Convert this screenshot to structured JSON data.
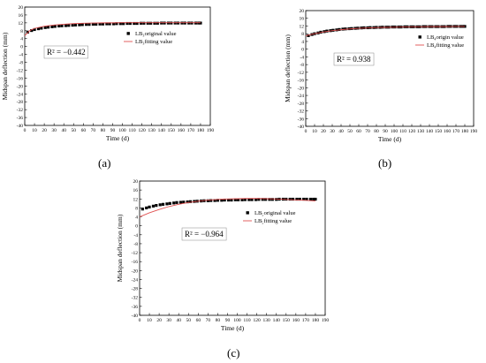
{
  "chart_data": [
    {
      "type": "scatter",
      "xlabel": "Time (d)",
      "ylabel": "Midspan deflection (mm)",
      "xlim": [
        0,
        190
      ],
      "ylim": [
        -40,
        20
      ],
      "xticks": [
        0,
        10,
        20,
        30,
        40,
        50,
        60,
        70,
        80,
        90,
        100,
        110,
        120,
        130,
        140,
        150,
        160,
        170,
        180,
        190
      ],
      "yticks": [
        20,
        16,
        12,
        8,
        4,
        0,
        -4,
        -8,
        -12,
        -16,
        -20,
        -24,
        -28,
        -32,
        -36,
        -40
      ],
      "series": [
        {
          "name": "LB₃original value",
          "style": "points",
          "color": "#000000",
          "x": [
            3,
            7,
            10,
            14,
            17,
            21,
            24,
            28,
            31,
            35,
            38,
            42,
            45,
            49,
            52,
            56,
            59,
            63,
            66,
            70,
            73,
            77,
            80,
            84,
            87,
            91,
            94,
            98,
            101,
            105,
            108,
            112,
            115,
            119,
            122,
            126,
            129,
            133,
            136,
            140,
            143,
            147,
            150,
            154,
            157,
            161,
            164,
            168,
            171,
            175,
            178,
            180
          ],
          "y": [
            7.3,
            8.1,
            8.6,
            9.0,
            9.3,
            9.6,
            9.8,
            10.0,
            10.2,
            10.4,
            10.5,
            10.6,
            10.7,
            10.8,
            10.9,
            11.0,
            11.1,
            11.2,
            11.2,
            11.3,
            11.3,
            11.4,
            11.4,
            11.5,
            11.5,
            11.5,
            11.6,
            11.6,
            11.6,
            11.7,
            11.7,
            11.7,
            11.7,
            11.8,
            11.8,
            11.8,
            11.8,
            11.8,
            11.8,
            11.9,
            11.9,
            11.9,
            11.9,
            11.9,
            11.9,
            11.9,
            11.9,
            11.9,
            11.9,
            11.9,
            11.9,
            11.9
          ]
        },
        {
          "name": "LB₃fitting value",
          "style": "line",
          "color": "#e05050",
          "x": [
            0,
            5,
            10,
            20,
            30,
            40,
            50,
            60,
            70,
            80,
            90,
            100,
            110,
            120,
            130,
            140,
            150,
            160,
            170,
            180
          ],
          "y": [
            5.5,
            8.0,
            9.2,
            10.3,
            10.9,
            11.3,
            11.6,
            11.8,
            11.9,
            12.0,
            12.0,
            12.1,
            12.1,
            12.1,
            12.1,
            12.1,
            12.1,
            12.1,
            12.1,
            12.1
          ]
        }
      ],
      "annotation": "R² = −0.442",
      "legend": "top-right",
      "grid": false,
      "caption": "(a)"
    },
    {
      "type": "scatter",
      "xlabel": "Time (d)",
      "ylabel": "Midspan deflection (mm)",
      "xlim": [
        0,
        190
      ],
      "ylim": [
        -40,
        20
      ],
      "xticks": [
        0,
        10,
        20,
        30,
        40,
        50,
        60,
        70,
        80,
        90,
        100,
        110,
        120,
        130,
        140,
        150,
        160,
        170,
        180,
        190
      ],
      "yticks": [
        20,
        16,
        12,
        8,
        4,
        0,
        -4,
        -8,
        -12,
        -16,
        -20,
        -24,
        -28,
        -32,
        -36,
        -40
      ],
      "series": [
        {
          "name": "LB₄origin value",
          "style": "points",
          "color": "#000000",
          "x": [
            3,
            7,
            10,
            14,
            17,
            21,
            24,
            28,
            31,
            35,
            38,
            42,
            45,
            49,
            52,
            56,
            59,
            63,
            66,
            70,
            73,
            77,
            80,
            84,
            87,
            91,
            94,
            98,
            101,
            105,
            108,
            112,
            115,
            119,
            122,
            126,
            129,
            133,
            136,
            140,
            143,
            147,
            150,
            154,
            157,
            161,
            164,
            168,
            171,
            175,
            178,
            180
          ],
          "y": [
            7.0,
            7.6,
            8.0,
            8.4,
            8.8,
            9.1,
            9.4,
            9.6,
            9.8,
            10.0,
            10.2,
            10.4,
            10.5,
            10.6,
            10.7,
            10.8,
            10.9,
            11.0,
            11.1,
            11.1,
            11.2,
            11.2,
            11.3,
            11.3,
            11.4,
            11.4,
            11.4,
            11.5,
            11.5,
            11.5,
            11.5,
            11.6,
            11.6,
            11.6,
            11.6,
            11.6,
            11.6,
            11.7,
            11.7,
            11.7,
            11.7,
            11.7,
            11.7,
            11.7,
            11.7,
            11.8,
            11.8,
            11.8,
            11.8,
            11.8,
            11.8,
            11.8
          ]
        },
        {
          "name": "LB₄fitting value",
          "style": "line",
          "color": "#e05050",
          "x": [
            0,
            5,
            10,
            20,
            30,
            40,
            50,
            60,
            70,
            80,
            90,
            100,
            110,
            120,
            130,
            140,
            150,
            160,
            170,
            180
          ],
          "y": [
            7.0,
            7.5,
            8.0,
            8.9,
            9.6,
            10.1,
            10.5,
            10.8,
            11.0,
            11.2,
            11.3,
            11.4,
            11.5,
            11.6,
            11.6,
            11.7,
            11.7,
            11.7,
            11.8,
            11.8
          ]
        }
      ],
      "annotation": "R² = 0.938",
      "legend": "top-right",
      "grid": false,
      "caption": "(b)"
    },
    {
      "type": "scatter",
      "xlabel": "Time (d)",
      "ylabel": "Midspan deflection (mm)",
      "xlim": [
        0,
        190
      ],
      "ylim": [
        -40,
        20
      ],
      "xticks": [
        0,
        10,
        20,
        30,
        40,
        50,
        60,
        70,
        80,
        90,
        100,
        110,
        120,
        130,
        140,
        150,
        160,
        170,
        180,
        190
      ],
      "yticks": [
        20,
        16,
        12,
        8,
        4,
        0,
        -4,
        -8,
        -12,
        -16,
        -20,
        -24,
        -28,
        -32,
        -36,
        -40
      ],
      "series": [
        {
          "name": "LB₅original value",
          "style": "points",
          "color": "#000000",
          "x": [
            3,
            7,
            10,
            14,
            17,
            21,
            24,
            28,
            31,
            35,
            38,
            42,
            45,
            49,
            52,
            56,
            59,
            63,
            66,
            70,
            73,
            77,
            80,
            84,
            87,
            91,
            94,
            98,
            101,
            105,
            108,
            112,
            115,
            119,
            122,
            126,
            129,
            133,
            136,
            140,
            143,
            147,
            150,
            154,
            157,
            161,
            164,
            168,
            171,
            175,
            178,
            180
          ],
          "y": [
            7.5,
            8.0,
            8.4,
            8.8,
            9.1,
            9.4,
            9.6,
            9.8,
            10.0,
            10.2,
            10.4,
            10.5,
            10.6,
            10.7,
            10.8,
            10.9,
            11.0,
            11.1,
            11.2,
            11.2,
            11.3,
            11.3,
            11.4,
            11.4,
            11.5,
            11.5,
            11.5,
            11.6,
            11.6,
            11.6,
            11.7,
            11.7,
            11.7,
            11.7,
            11.8,
            11.8,
            11.8,
            11.8,
            11.8,
            11.8,
            11.9,
            11.9,
            11.9,
            11.9,
            11.9,
            11.9,
            11.9,
            11.9,
            11.9,
            11.9,
            11.9,
            11.9
          ]
        },
        {
          "name": "LB₅fitting value",
          "style": "line",
          "color": "#e05050",
          "x": [
            0,
            10,
            20,
            30,
            40,
            50,
            60,
            70,
            80,
            90,
            100,
            110,
            120,
            130,
            140,
            150,
            160,
            170,
            180
          ],
          "y": [
            4.0,
            5.8,
            7.3,
            8.6,
            9.6,
            10.4,
            11.0,
            11.5,
            11.8,
            12.0,
            12.1,
            12.2,
            12.2,
            12.1,
            12.0,
            11.8,
            11.6,
            11.4,
            11.1
          ]
        }
      ],
      "annotation": "R² = −0.964",
      "legend": "top-right",
      "grid": false,
      "caption": "(c)"
    }
  ]
}
